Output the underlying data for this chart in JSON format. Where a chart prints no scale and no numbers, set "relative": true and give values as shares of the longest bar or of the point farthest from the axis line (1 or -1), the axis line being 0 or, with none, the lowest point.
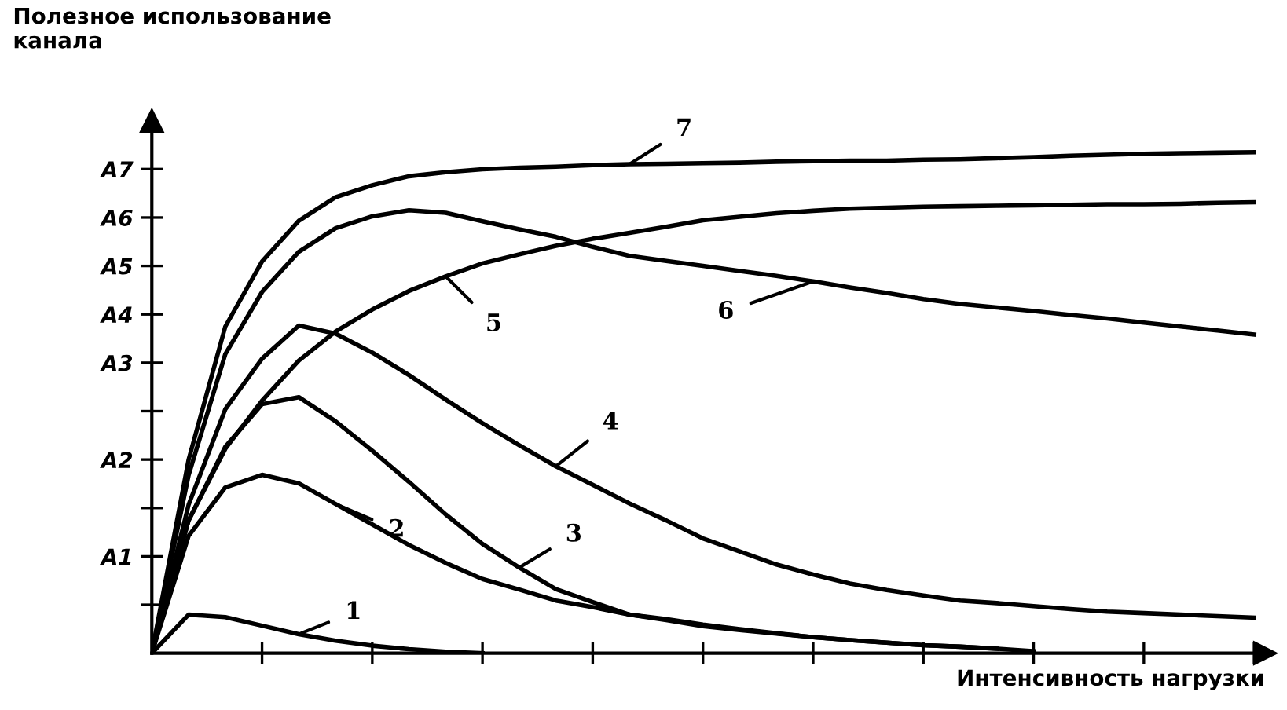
{
  "chart_data": {
    "type": "line",
    "relative": true,
    "xlabel": "Интенсивность нагрузки",
    "ylabel": "Полезное использование\nканала",
    "categories": [
      null,
      null,
      null,
      null,
      null,
      null,
      null,
      null,
      null,
      null,
      null,
      null,
      null,
      null,
      null,
      null,
      null,
      null,
      null,
      null,
      null,
      null,
      null,
      null,
      null,
      null,
      null,
      null,
      null,
      null,
      null
    ],
    "annotations": [
      "A1",
      "A2",
      "A3",
      "A4",
      "A5",
      "A6",
      "A7"
    ],
    "marker": "none",
    "line_style": "solid",
    "series": [
      {
        "name": "1",
        "color": "#000000",
        "values": [
          0,
          0.077,
          0.072,
          0.055,
          0.038,
          0.025,
          0.015,
          0.008,
          0.003,
          0,
          null,
          null,
          null,
          null,
          null,
          null,
          null,
          null,
          null,
          null,
          null,
          null,
          null,
          null,
          null,
          null,
          null,
          null,
          null,
          null,
          null
        ]
      },
      {
        "name": "2",
        "color": "#000000",
        "values": [
          0,
          0.234,
          0.331,
          0.356,
          0.339,
          0.298,
          0.257,
          0.216,
          0.18,
          0.148,
          0.127,
          0.105,
          0.092,
          0.077,
          0.068,
          0.057,
          0.048,
          0.04,
          0.032,
          0.026,
          0.021,
          0.016,
          0.013,
          0.009,
          0.004,
          null,
          null,
          null,
          null,
          null,
          null
        ]
      },
      {
        "name": "3",
        "color": "#000000",
        "values": [
          0,
          0.265,
          0.412,
          0.497,
          0.511,
          0.463,
          0.404,
          0.342,
          0.277,
          0.218,
          0.171,
          0.128,
          0.102,
          0.077,
          0.066,
          0.054,
          0.046,
          0.039,
          0.032,
          0.026,
          0.021,
          0.016,
          0.013,
          0.009,
          null,
          null,
          null,
          null,
          null,
          null,
          null
        ]
      },
      {
        "name": "4",
        "color": "#000000",
        "values": [
          0,
          0.296,
          0.487,
          0.588,
          0.654,
          0.638,
          0.6,
          0.555,
          0.506,
          0.459,
          0.415,
          0.373,
          0.336,
          0.299,
          0.265,
          0.229,
          0.203,
          0.177,
          0.157,
          0.139,
          0.126,
          0.115,
          0.105,
          0.1,
          0.094,
          0.088,
          0.083,
          0.08,
          0.077,
          0.074,
          0.071
        ]
      },
      {
        "name": "5",
        "color": "#000000",
        "values": [
          0,
          0.265,
          0.408,
          0.504,
          0.584,
          0.642,
          0.686,
          0.723,
          0.752,
          0.778,
          0.796,
          0.813,
          0.827,
          0.839,
          0.851,
          0.864,
          0.871,
          0.878,
          0.883,
          0.887,
          0.889,
          0.891,
          0.892,
          0.893,
          0.894,
          0.895,
          0.896,
          0.896,
          0.897,
          0.899,
          0.9
        ]
      },
      {
        "name": "6",
        "color": "#000000",
        "values": [
          0,
          0.355,
          0.597,
          0.721,
          0.801,
          0.848,
          0.872,
          0.884,
          0.879,
          0.862,
          0.846,
          0.831,
          0.811,
          0.793,
          0.783,
          0.773,
          0.763,
          0.753,
          0.742,
          0.73,
          0.719,
          0.707,
          0.697,
          0.69,
          0.683,
          0.675,
          0.668,
          0.66,
          0.652,
          0.644,
          0.636
        ]
      },
      {
        "name": "7",
        "color": "#000000",
        "values": [
          0,
          0.386,
          0.652,
          0.782,
          0.863,
          0.91,
          0.934,
          0.952,
          0.96,
          0.966,
          0.969,
          0.971,
          0.974,
          0.976,
          0.977,
          0.978,
          0.979,
          0.981,
          0.982,
          0.983,
          0.983,
          0.985,
          0.986,
          0.988,
          0.99,
          0.993,
          0.995,
          0.997,
          0.998,
          0.999,
          1
        ]
      }
    ]
  }
}
